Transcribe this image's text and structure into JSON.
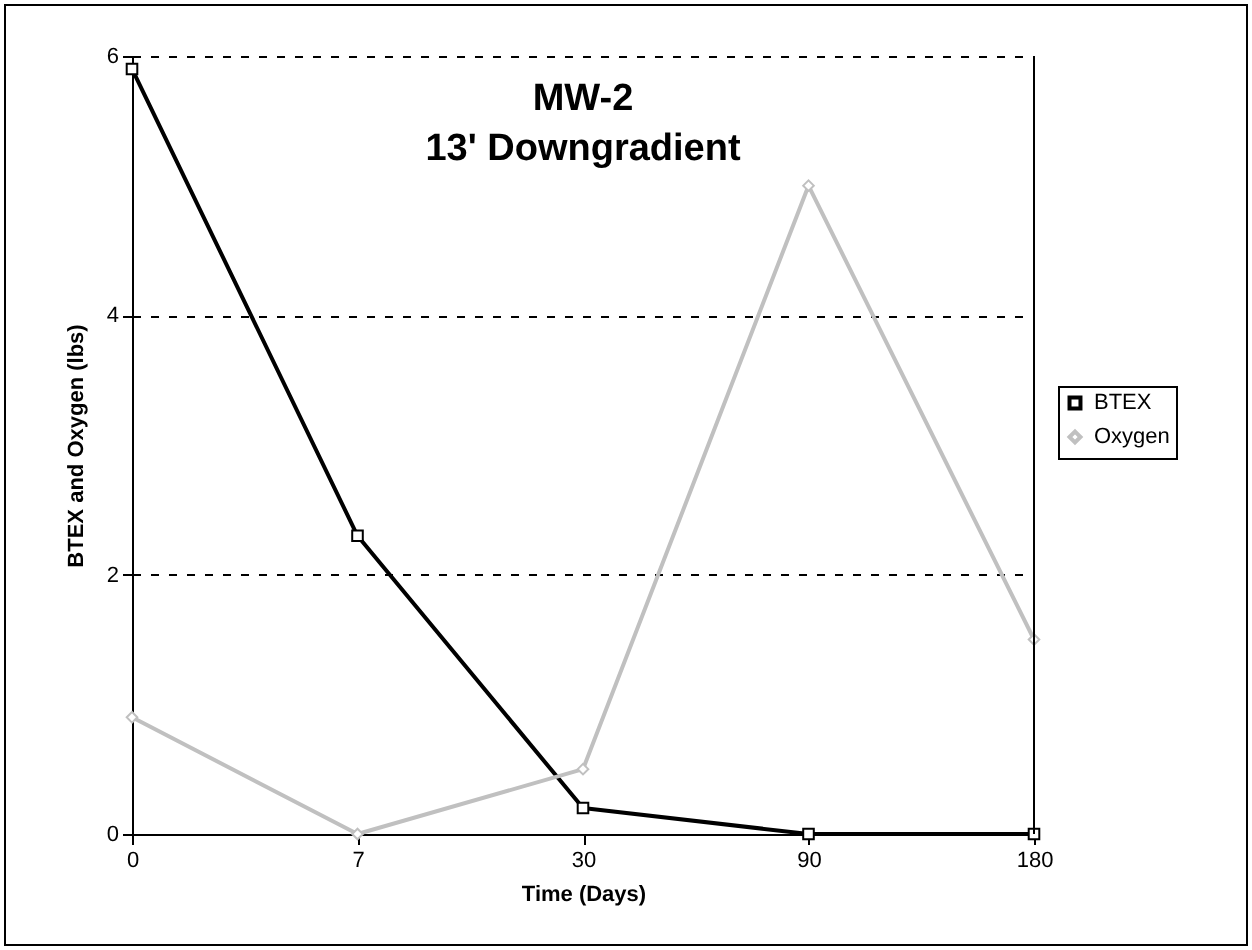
{
  "chart_data": {
    "type": "line",
    "title": "MW-2",
    "subtitle": "13' Downgradient",
    "xlabel": "Time (Days)",
    "ylabel": "BTEX and Oxygen (lbs)",
    "categories": [
      "0",
      "7",
      "30",
      "90",
      "180"
    ],
    "series": [
      {
        "name": "BTEX",
        "color": "#000000",
        "marker": "square",
        "values": [
          5.9,
          2.3,
          0.2,
          0,
          0
        ]
      },
      {
        "name": "Oxygen",
        "color": "#c0c0c0",
        "marker": "diamond",
        "values": [
          0.9,
          0,
          0.5,
          5,
          1.5
        ]
      }
    ],
    "ylim": [
      0,
      6
    ],
    "yticks": [
      0,
      2,
      4,
      6
    ],
    "grid": "y",
    "legend": "right",
    "line_style": "solid"
  }
}
